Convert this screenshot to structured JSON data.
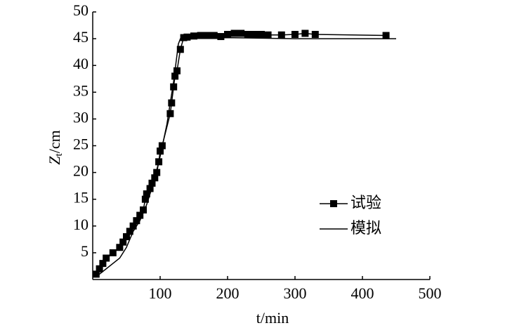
{
  "chart_data": {
    "type": "line",
    "xlabel": "t/min",
    "ylabel": [
      "Z",
      "t",
      "/cm"
    ],
    "xlim": [
      0,
      500
    ],
    "ylim": [
      0,
      50
    ],
    "xticks": [
      100,
      200,
      300,
      400,
      500
    ],
    "yticks": [
      5,
      10,
      15,
      20,
      25,
      30,
      35,
      40,
      45,
      50
    ],
    "legend": "right",
    "series": [
      {
        "name": "试验",
        "color": "#000000",
        "marker": "square",
        "x": [
          5,
          10,
          15,
          20,
          30,
          40,
          45,
          50,
          55,
          60,
          65,
          70,
          75,
          78,
          80,
          85,
          88,
          92,
          95,
          98,
          100,
          103,
          115,
          117,
          120,
          122,
          125,
          130,
          135,
          140,
          150,
          160,
          170,
          180,
          190,
          200,
          210,
          220,
          230,
          240,
          250,
          260,
          280,
          300,
          315,
          330,
          435
        ],
        "values": [
          1,
          2,
          3,
          4,
          5,
          6,
          7,
          8,
          9,
          10,
          11,
          12,
          13,
          15,
          16,
          17,
          18,
          19,
          20,
          22,
          24,
          25,
          31,
          33,
          36,
          38,
          39,
          43,
          45.2,
          45.3,
          45.5,
          45.6,
          45.6,
          45.6,
          45.4,
          45.8,
          46,
          46,
          45.8,
          45.8,
          45.8,
          45.7,
          45.7,
          45.8,
          46,
          45.8,
          45.6
        ]
      },
      {
        "name": "模拟",
        "color": "#000000",
        "marker": "none",
        "x": [
          5,
          20,
          40,
          50,
          60,
          70,
          80,
          90,
          100,
          110,
          120,
          127,
          130,
          200,
          300,
          450
        ],
        "values": [
          0.5,
          2,
          4,
          6,
          9,
          11,
          14,
          18,
          23,
          29,
          37,
          44,
          45,
          45.2,
          45,
          45
        ]
      }
    ]
  }
}
